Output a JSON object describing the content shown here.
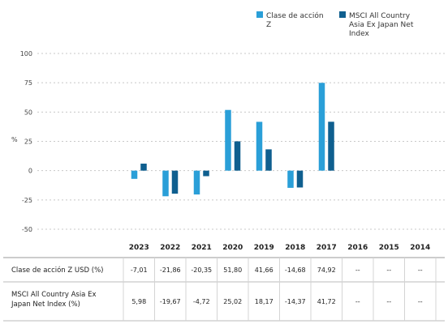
{
  "chart_data": {
    "type": "bar",
    "ylabel": "%",
    "ylim": [
      -50,
      100
    ],
    "yticks": [
      "100",
      "75",
      "50",
      "25",
      "0",
      "-25",
      "-50"
    ],
    "yticks_values": [
      100,
      75,
      50,
      25,
      0,
      -25,
      -50
    ],
    "grid": true,
    "legend_position": "top-right",
    "categories": [
      "2023",
      "2022",
      "2021",
      "2020",
      "2019",
      "2018",
      "2017",
      "2016",
      "2015",
      "2014"
    ],
    "series": [
      {
        "name": "Clase de acción Z",
        "color": "#2a9fd8",
        "values": [
          -7.01,
          -21.86,
          -20.35,
          51.8,
          41.66,
          -14.68,
          74.92,
          null,
          null,
          null
        ]
      },
      {
        "name": "MSCI All Country Asia Ex Japan Net Index",
        "color": "#0f5f8f",
        "values": [
          5.98,
          -19.67,
          -4.72,
          25.02,
          18.17,
          -14.37,
          41.72,
          null,
          null,
          null
        ]
      }
    ],
    "legend_lines": [
      [
        "Clase de acción",
        "Z"
      ],
      [
        "MSCI All Country",
        "Asia Ex Japan Net",
        "Index"
      ]
    ]
  },
  "table": {
    "rows": [
      {
        "label_lines": [
          "Clase de acción Z USD (%)"
        ],
        "cells": [
          "-7,01",
          "-21,86",
          "-20,35",
          "51,80",
          "41,66",
          "-14,68",
          "74,92",
          "--",
          "--",
          "--"
        ]
      },
      {
        "label_lines": [
          "MSCI All Country Asia Ex",
          "Japan Net Index (%)"
        ],
        "cells": [
          "5,98",
          "-19,67",
          "-4,72",
          "25,02",
          "18,17",
          "-14,37",
          "41,72",
          "--",
          "--",
          "--"
        ]
      }
    ]
  }
}
